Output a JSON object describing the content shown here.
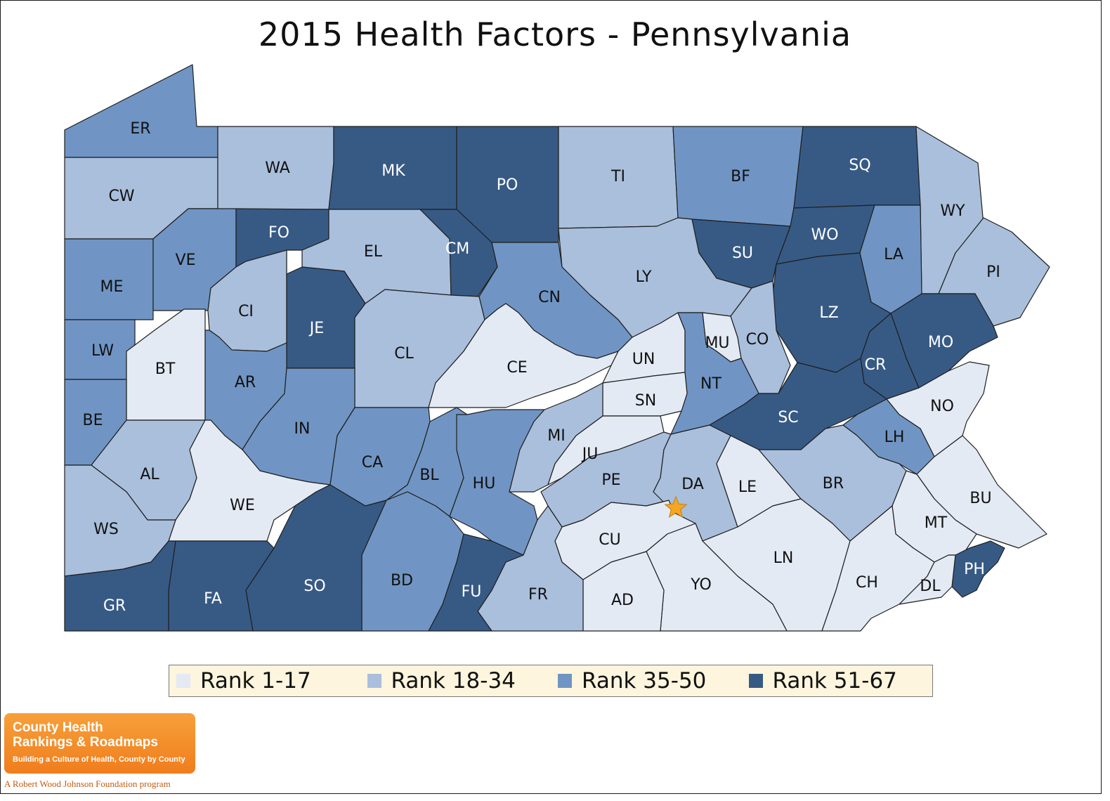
{
  "title": "2015 Health Factors - Pennsylvania",
  "colors": {
    "rank_1_17": "#e3eaf4",
    "rank_18_34": "#a9bfdc",
    "rank_35_50": "#7095c4",
    "rank_51_67": "#375a85",
    "legend_bg": "#fdf5dd",
    "star": "#f5a623"
  },
  "legend": {
    "items": [
      {
        "label": "Rank 1-17",
        "rank": "rank_1_17"
      },
      {
        "label": "Rank 18-34",
        "rank": "rank_18_34"
      },
      {
        "label": "Rank 35-50",
        "rank": "rank_35_50"
      },
      {
        "label": "Rank 51-67",
        "rank": "rank_51_67"
      }
    ]
  },
  "counties": {
    "ER": "rank_35_50",
    "CW": "rank_18_34",
    "WA": "rank_18_34",
    "MK": "rank_51_67",
    "PO": "rank_51_67",
    "TI": "rank_18_34",
    "BF": "rank_35_50",
    "SQ": "rank_51_67",
    "WY": "rank_18_34",
    "PI": "rank_18_34",
    "WO": "rank_51_67",
    "SU": "rank_51_67",
    "LA": "rank_35_50",
    "ME": "rank_35_50",
    "VE": "rank_35_50",
    "FO": "rank_51_67",
    "EL": "rank_18_34",
    "CM": "rank_51_67",
    "LY": "rank_18_34",
    "LZ": "rank_51_67",
    "MO": "rank_51_67",
    "CR": "rank_51_67",
    "LW": "rank_35_50",
    "BT": "rank_1_17",
    "CI": "rank_18_34",
    "JE": "rank_51_67",
    "CL": "rank_18_34",
    "CN": "rank_35_50",
    "CE": "rank_1_17",
    "UN": "rank_1_17",
    "MU": "rank_1_17",
    "CO": "rank_18_34",
    "NT": "rank_35_50",
    "SN": "rank_1_17",
    "SC": "rank_51_67",
    "NO": "rank_1_17",
    "LH": "rank_35_50",
    "BE": "rank_35_50",
    "AR": "rank_35_50",
    "IN": "rank_35_50",
    "CA": "rank_35_50",
    "BL": "rank_35_50",
    "HU": "rank_35_50",
    "MI": "rank_18_34",
    "JU": "rank_1_17",
    "PE": "rank_18_34",
    "DA": "rank_18_34",
    "LE": "rank_1_17",
    "BR": "rank_18_34",
    "BU": "rank_1_17",
    "AL": "rank_18_34",
    "WE": "rank_1_17",
    "WS": "rank_18_34",
    "MT": "rank_1_17",
    "CU": "rank_1_17",
    "LN": "rank_1_17",
    "PH": "rank_51_67",
    "CH": "rank_1_17",
    "DL": "rank_1_17",
    "YO": "rank_1_17",
    "AD": "rank_1_17",
    "FR": "rank_18_34",
    "FU": "rank_51_67",
    "BD": "rank_35_50",
    "SO": "rank_51_67",
    "FA": "rank_51_67",
    "GR": "rank_51_67"
  },
  "capital_marker": "star",
  "logo": {
    "name_line1": "County Health",
    "name_line2": "Rankings & Roadmaps",
    "tagline": "Building a Culture of Health, County by County",
    "footer": "A Robert Wood Johnson Foundation program"
  }
}
